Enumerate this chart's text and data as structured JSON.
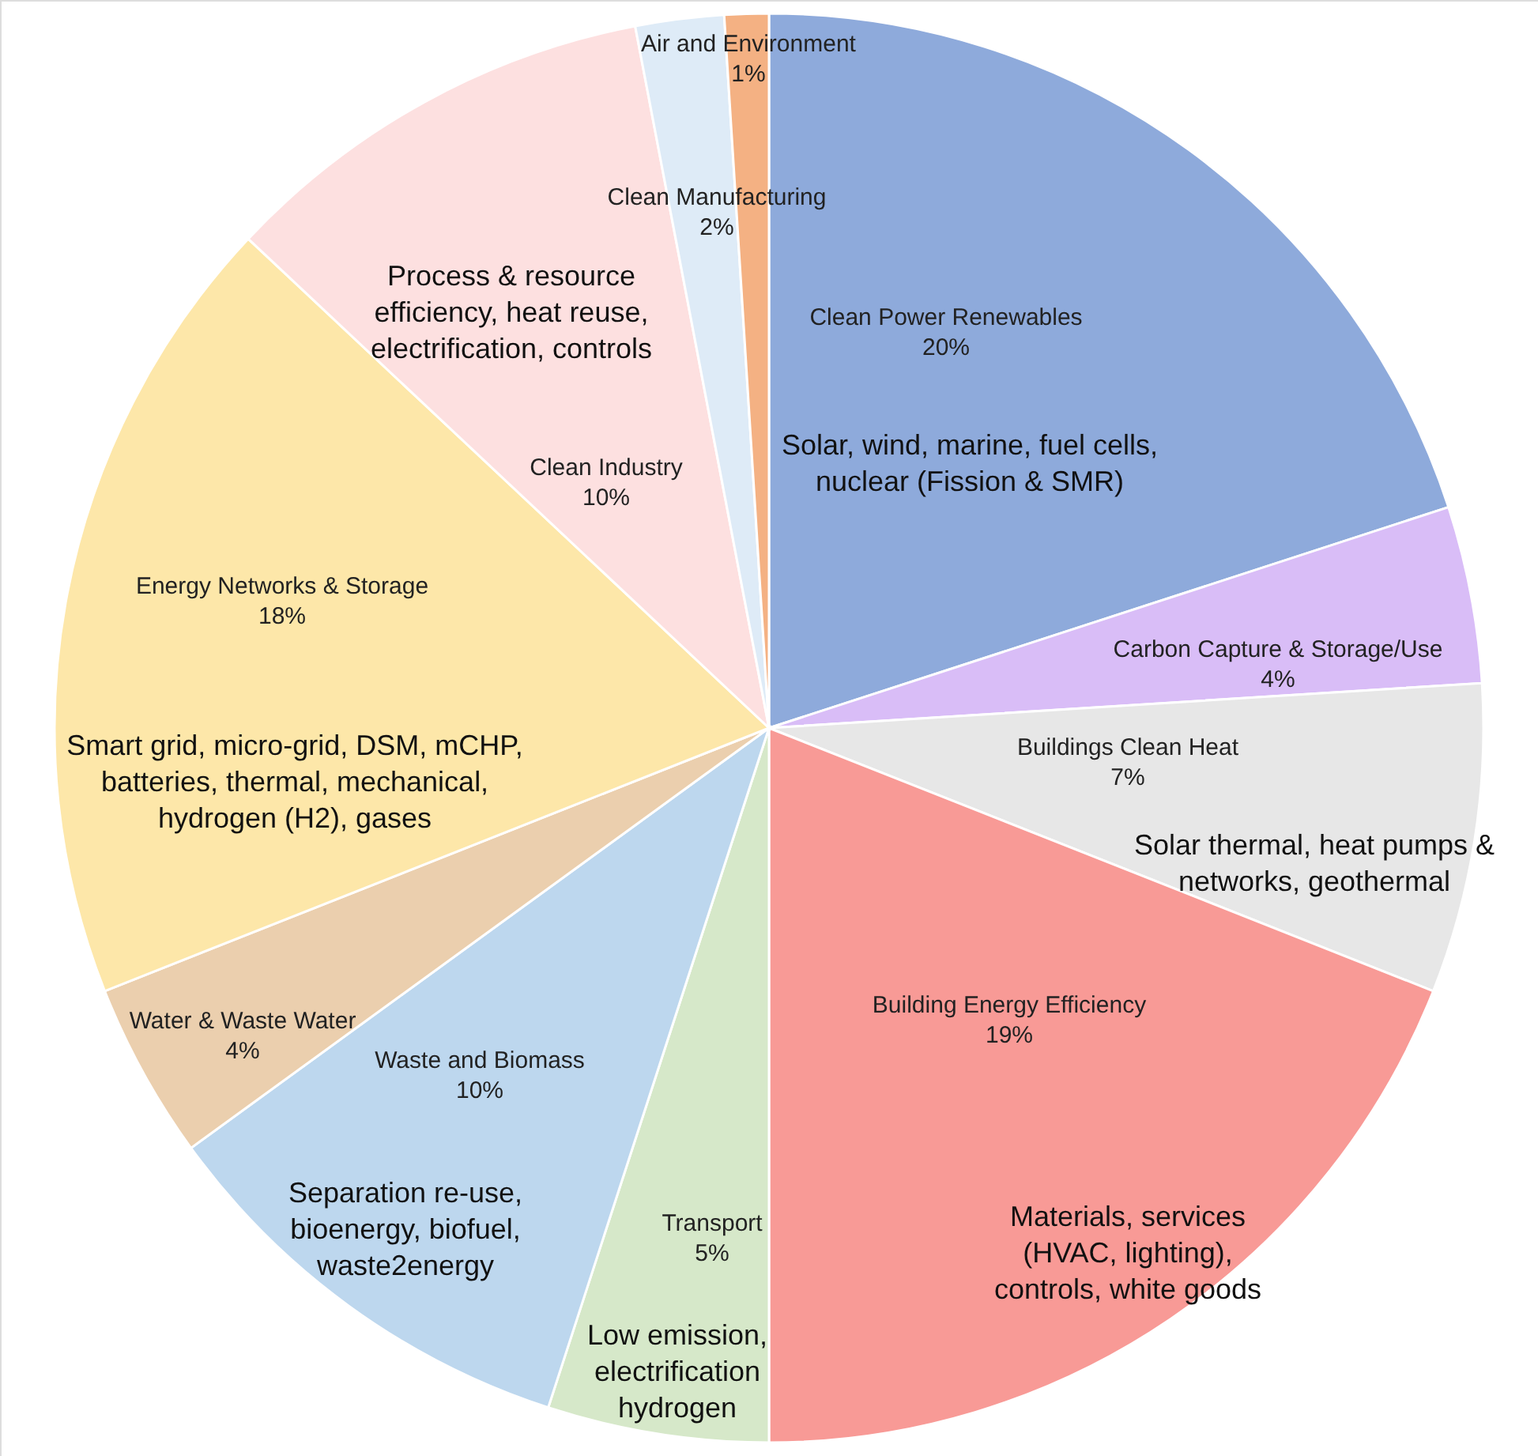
{
  "chart_data": {
    "type": "pie",
    "categories": [
      "Clean Power Renewables",
      "Carbon Capture & Storage/Use",
      "Buildings Clean Heat",
      "Building Energy Efficiency",
      "Transport",
      "Waste and Biomass",
      "Water & Waste Water",
      "Energy Networks & Storage",
      "Clean Industry",
      "Clean Manufacturing",
      "Air and Environment"
    ],
    "values": [
      20,
      4,
      7,
      19,
      5,
      10,
      4,
      18,
      10,
      2,
      1
    ],
    "value_labels": [
      "20%",
      "4%",
      "7%",
      "19%",
      "5%",
      "10%",
      "4%",
      "18%",
      "10%",
      "2%",
      "1%"
    ],
    "colors": [
      "#8eaadb",
      "#d9bdf7",
      "#e7e7e7",
      "#f89a96",
      "#d6e8c9",
      "#bdd7ee",
      "#ebcfae",
      "#fde7a9",
      "#fde0e0",
      "#deebf7",
      "#f4b183"
    ],
    "annotations": [
      {
        "text": "Solar, wind, marine, fuel cells,\nnuclear (Fission & SMR)",
        "x": "Clean Power Renewables"
      },
      {
        "text": "Solar thermal, heat pumps &\nnetworks, geothermal",
        "x": "Buildings Clean Heat"
      },
      {
        "text": "Materials, services\n(HVAC, lighting),\ncontrols, white goods",
        "x": "Building Energy Efficiency"
      },
      {
        "text": "Low emission,\nelectrification\nhydrogen",
        "x": "Transport"
      },
      {
        "text": "Separation re-use,\nbioenergy, biofuel,\nwaste2energy",
        "x": "Waste and Biomass"
      },
      {
        "text": "Smart grid, micro-grid, DSM, mCHP,\nbatteries, thermal, mechanical,\nhydrogen (H2), gases",
        "x": "Energy Networks & Storage"
      },
      {
        "text": "Process & resource\nefficiency, heat reuse,\nelectrification, controls",
        "x": "Clean Industry"
      }
    ]
  }
}
